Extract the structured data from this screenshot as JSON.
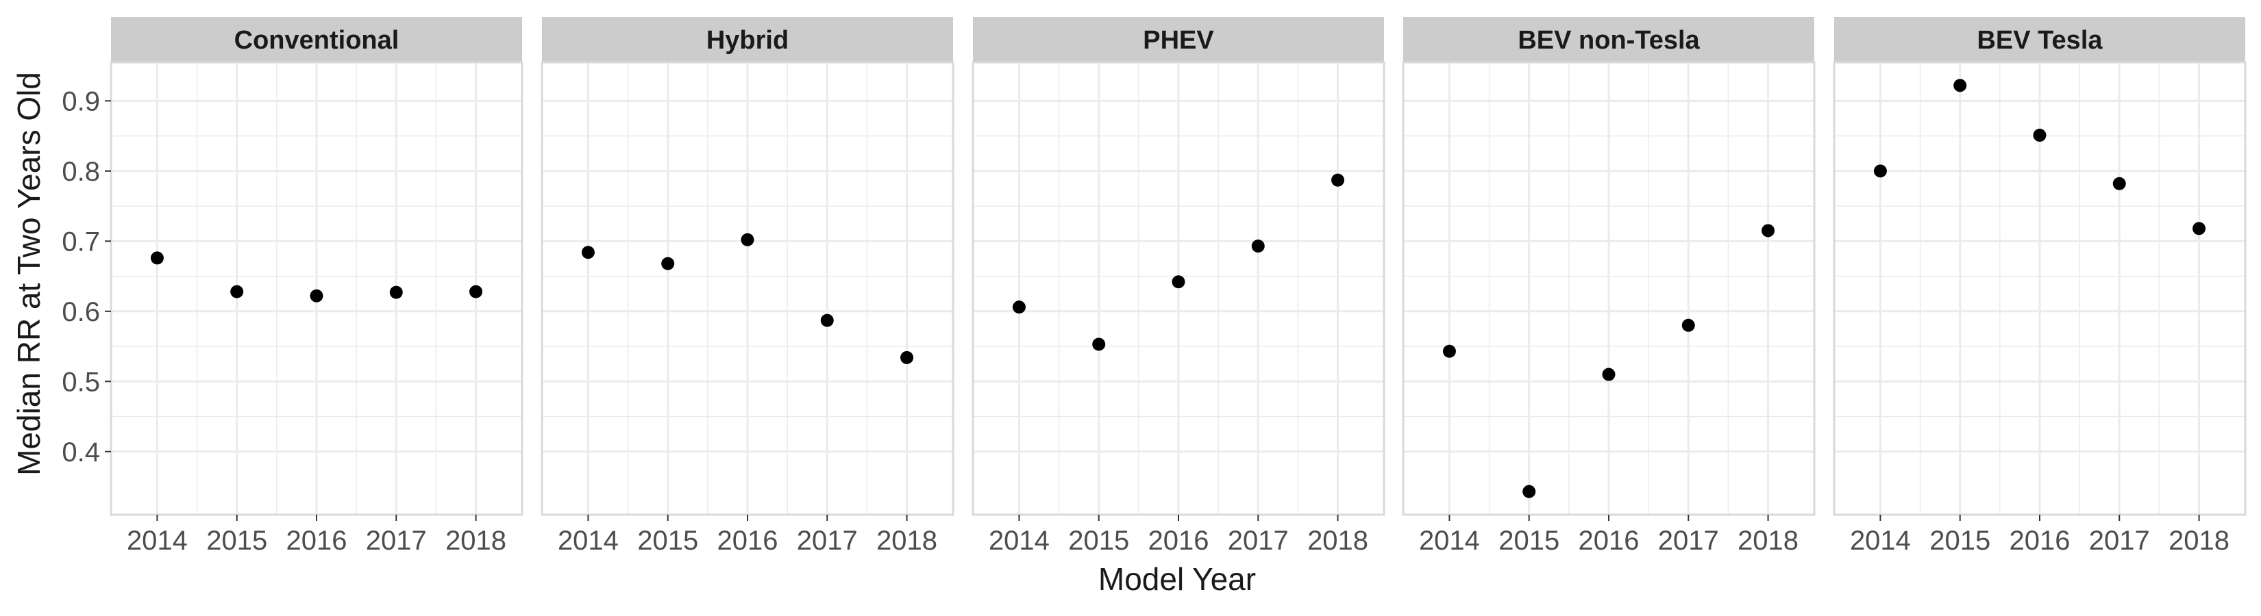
{
  "chart_data": {
    "type": "scatter",
    "facet_layout": "single row of five panels with shared y-axis",
    "xlabel": "Model Year",
    "ylabel": "Median RR at Two Years Old",
    "x_ticks": [
      2014,
      2015,
      2016,
      2017,
      2018
    ],
    "y_ticks": [
      0.4,
      0.5,
      0.6,
      0.7,
      0.8,
      0.9
    ],
    "xlim": [
      2013.42,
      2018.58
    ],
    "ylim": [
      0.31,
      0.955
    ],
    "grid": true,
    "point_color": "#000000",
    "strip_fill": "#cccccc",
    "grid_color": "#ebebeb",
    "panel_border_color": "#d9d9d9",
    "panels": [
      {
        "title": "Conventional",
        "x": [
          2014,
          2015,
          2016,
          2017,
          2018
        ],
        "y": [
          0.676,
          0.628,
          0.622,
          0.627,
          0.628
        ]
      },
      {
        "title": "Hybrid",
        "x": [
          2014,
          2015,
          2016,
          2017,
          2018
        ],
        "y": [
          0.684,
          0.668,
          0.702,
          0.587,
          0.534
        ]
      },
      {
        "title": "PHEV",
        "x": [
          2014,
          2015,
          2016,
          2017,
          2018
        ],
        "y": [
          0.606,
          0.553,
          0.642,
          0.693,
          0.787
        ]
      },
      {
        "title": "BEV non-Tesla",
        "x": [
          2014,
          2015,
          2016,
          2017,
          2018
        ],
        "y": [
          0.543,
          0.343,
          0.51,
          0.58,
          0.715
        ]
      },
      {
        "title": "BEV Tesla",
        "x": [
          2014,
          2015,
          2016,
          2017,
          2018
        ],
        "y": [
          0.8,
          0.922,
          0.851,
          0.782,
          0.718
        ]
      }
    ]
  }
}
